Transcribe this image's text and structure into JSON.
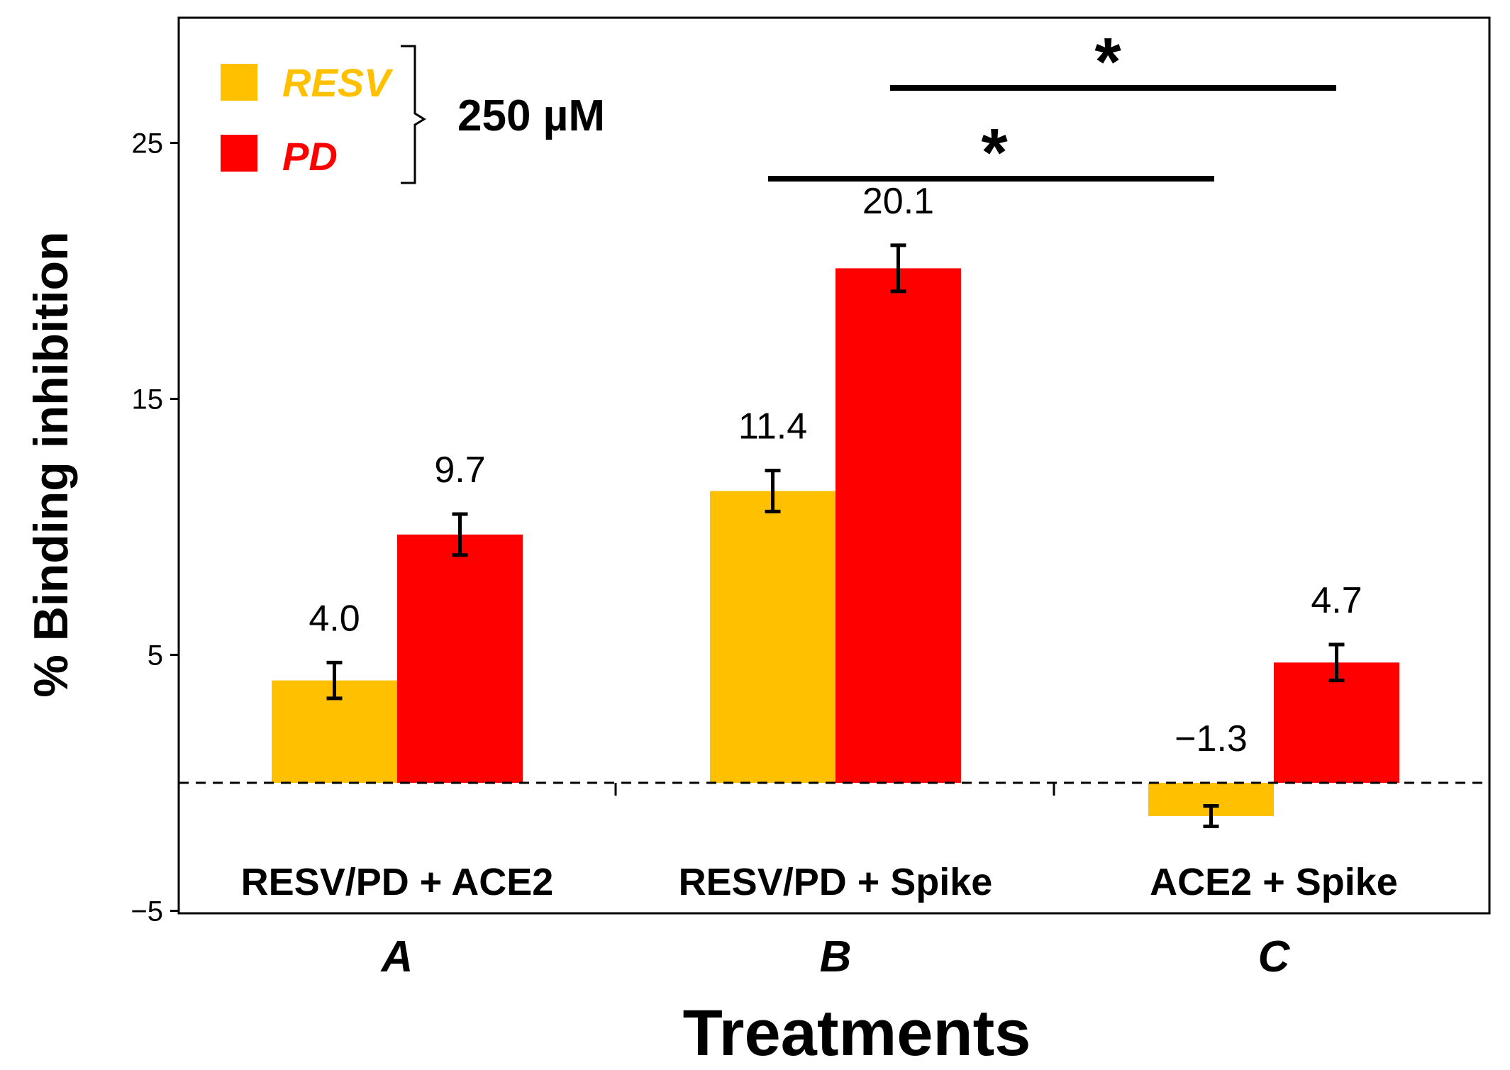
{
  "chart_data": {
    "type": "bar",
    "title": "",
    "xlabel": "Treatments",
    "ylabel": "% Binding inhibition",
    "ylim": [
      -5,
      30
    ],
    "yticks": [
      {
        "value": -5,
        "label": "−5"
      },
      {
        "value": 5,
        "label": "5"
      },
      {
        "value": 15,
        "label": "15"
      },
      {
        "value": 25,
        "label": "25"
      }
    ],
    "categories": [
      "A",
      "B",
      "C"
    ],
    "group_labels": [
      "RESV/PD + ACE2",
      "RESV/PD + Spike",
      "ACE2 + Spike"
    ],
    "series": [
      {
        "name": "RESV",
        "color": "#FFC000",
        "values": [
          4.0,
          11.4,
          -1.3
        ],
        "errors": [
          0.7,
          0.8,
          0.4
        ],
        "labels": [
          "4.0",
          "11.4",
          "−1.3"
        ]
      },
      {
        "name": "PD",
        "color": "#FF0000",
        "values": [
          9.7,
          20.1,
          4.7
        ],
        "errors": [
          0.8,
          0.9,
          0.7
        ],
        "labels": [
          "9.7",
          "20.1",
          "4.7"
        ]
      }
    ],
    "legend": {
      "position": "top-left",
      "entries": [
        "RESV",
        "PD"
      ],
      "concentration": "250 µM"
    },
    "baseline": {
      "value": 0,
      "style": "dashed"
    },
    "significance": [
      {
        "from": "B-RESV",
        "to": "C-RESV",
        "symbol": "*"
      },
      {
        "from": "B-PD",
        "to": "C-PD",
        "symbol": "*"
      }
    ]
  }
}
